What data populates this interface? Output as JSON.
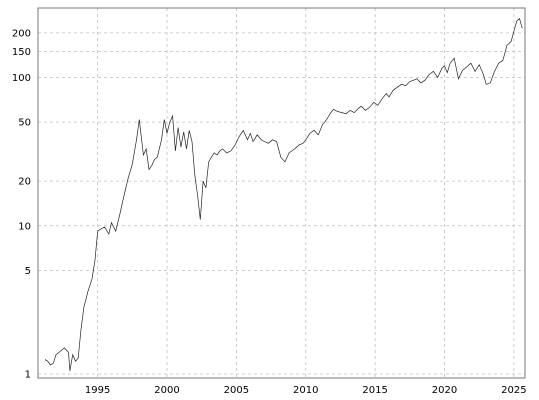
{
  "chart_data": {
    "type": "line",
    "title": "",
    "xlabel": "",
    "ylabel": "",
    "y_scale": "log",
    "xlim": [
      1990.7,
      2025.8
    ],
    "ylim": [
      1,
      260
    ],
    "grid": true,
    "x_ticks": [
      {
        "value": 1995,
        "label": "1995"
      },
      {
        "value": 2000,
        "label": "2000"
      },
      {
        "value": 2005,
        "label": "2005"
      },
      {
        "value": 2010,
        "label": "2010"
      },
      {
        "value": 2015,
        "label": "2015"
      },
      {
        "value": 2020,
        "label": "2020"
      },
      {
        "value": 2025,
        "label": "2025"
      }
    ],
    "y_ticks": [
      {
        "value": 1,
        "label": "1"
      },
      {
        "value": 5,
        "label": "5"
      },
      {
        "value": 10,
        "label": "10"
      },
      {
        "value": 20,
        "label": "20"
      },
      {
        "value": 50,
        "label": "50"
      },
      {
        "value": 100,
        "label": "100"
      },
      {
        "value": 150,
        "label": "150"
      },
      {
        "value": 200,
        "label": "200"
      }
    ],
    "series": [
      {
        "x": [
          1991.2,
          1991.4,
          1991.6,
          1991.8,
          1992.0,
          1992.3,
          1992.6,
          1992.9,
          1993.0,
          1993.2,
          1993.4,
          1993.6,
          1993.8,
          1994.0,
          1994.3,
          1994.6,
          1994.8,
          1995.0,
          1995.3,
          1995.5,
          1995.8,
          1996.0,
          1996.3,
          1996.6,
          1996.9,
          1997.2,
          1997.5,
          1997.8,
          1998.0,
          1998.3,
          1998.5,
          1998.7,
          1998.9,
          1999.1,
          1999.3,
          1999.6,
          1999.8,
          2000.0,
          2000.2,
          2000.4,
          2000.6,
          2000.8,
          2001.0,
          2001.2,
          2001.4,
          2001.6,
          2001.8,
          2002.0,
          2002.2,
          2002.4,
          2002.6,
          2002.8,
          2003.0,
          2003.2,
          2003.4,
          2003.6,
          2003.8,
          2004.0,
          2004.3,
          2004.6,
          2004.9,
          2005.2,
          2005.5,
          2005.8,
          2006.0,
          2006.2,
          2006.5,
          2006.8,
          2007.0,
          2007.3,
          2007.6,
          2007.9,
          2008.2,
          2008.5,
          2008.8,
          2009.0,
          2009.2,
          2009.5,
          2009.8,
          2010.0,
          2010.3,
          2010.6,
          2010.9,
          2011.2,
          2011.5,
          2011.8,
          2012.0,
          2012.3,
          2012.6,
          2012.9,
          2013.2,
          2013.5,
          2013.8,
          2014.0,
          2014.3,
          2014.6,
          2014.9,
          2015.2,
          2015.5,
          2015.8,
          2016.0,
          2016.3,
          2016.6,
          2016.9,
          2017.2,
          2017.5,
          2017.8,
          2018.0,
          2018.3,
          2018.6,
          2018.9,
          2019.2,
          2019.5,
          2019.8,
          2020.0,
          2020.2,
          2020.4,
          2020.7,
          2021.0,
          2021.3,
          2021.6,
          2021.9,
          2022.2,
          2022.5,
          2022.8,
          2023.0,
          2023.3,
          2023.6,
          2023.9,
          2024.2,
          2024.5,
          2024.8,
          2025.0,
          2025.2,
          2025.4,
          2025.6
        ],
        "values": [
          1.25,
          1.22,
          1.15,
          1.18,
          1.35,
          1.42,
          1.5,
          1.4,
          1.05,
          1.35,
          1.22,
          1.28,
          2.0,
          2.8,
          3.6,
          4.4,
          5.8,
          9.2,
          9.6,
          9.8,
          8.8,
          10.5,
          9.2,
          12.0,
          16.0,
          21.0,
          26.0,
          38.0,
          52.0,
          30.0,
          33.0,
          24.0,
          25.5,
          28.0,
          29.0,
          38.0,
          52.0,
          42.0,
          50.0,
          55.0,
          32.0,
          46.0,
          34.0,
          43.0,
          33.0,
          44.0,
          37.0,
          22.0,
          16.0,
          11.0,
          20.0,
          18.0,
          27.0,
          29.0,
          31.0,
          30.0,
          32.0,
          33.0,
          31.0,
          32.0,
          35.0,
          40.0,
          44.0,
          38.0,
          42.0,
          37.0,
          41.0,
          38.0,
          37.0,
          36.0,
          38.0,
          37.0,
          29.0,
          27.0,
          31.0,
          32.0,
          33.0,
          35.0,
          36.0,
          38.0,
          42.0,
          44.0,
          41.0,
          48.0,
          52.0,
          58.0,
          61.0,
          59.0,
          58.0,
          57.0,
          60.0,
          58.0,
          62.0,
          64.0,
          60.0,
          63.0,
          68.0,
          65.0,
          72.0,
          78.0,
          74.0,
          82.0,
          86.0,
          90.0,
          88.0,
          94.0,
          96.0,
          98.0,
          92.0,
          96.0,
          105.0,
          110.0,
          100.0,
          115.0,
          120.0,
          108.0,
          125.0,
          135.0,
          98.0,
          112.0,
          118.0,
          125.0,
          110.0,
          122.0,
          105.0,
          90.0,
          92.0,
          110.0,
          125.0,
          130.0,
          165.0,
          175.0,
          205.0,
          240.0,
          250.0,
          215.0
        ]
      }
    ]
  }
}
